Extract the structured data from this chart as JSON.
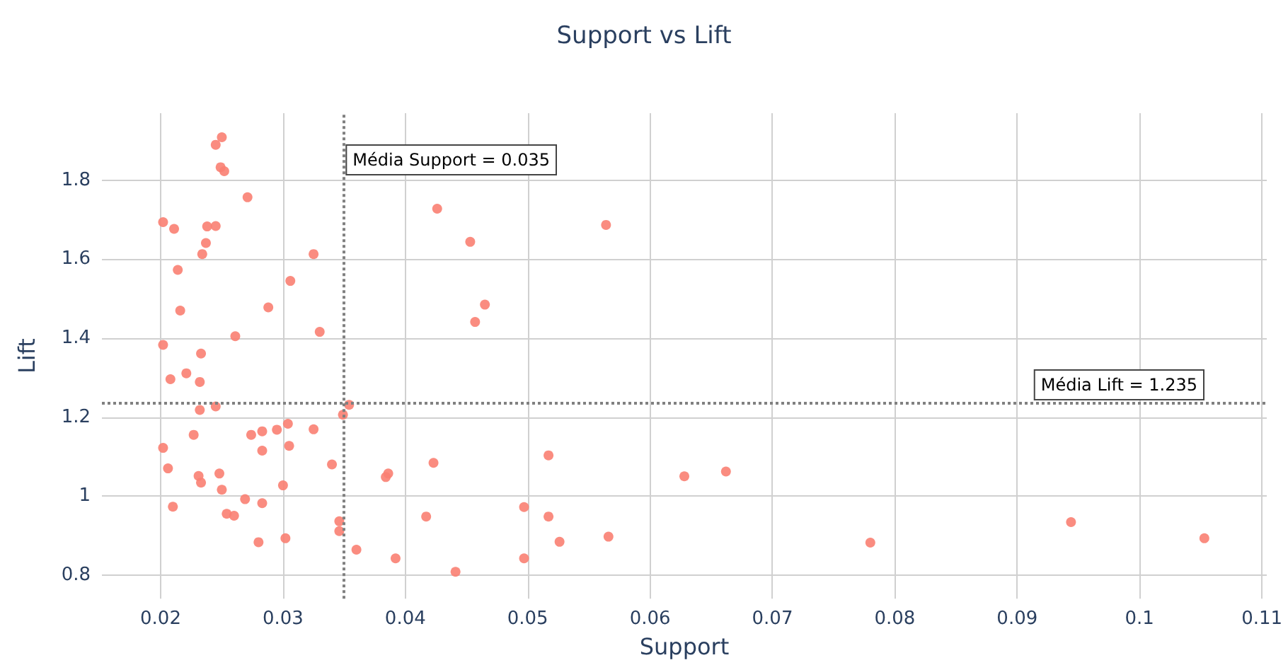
{
  "chart_data": {
    "type": "scatter",
    "title": "Support vs Lift",
    "xlabel": "Support",
    "ylabel": "Lift",
    "color": "#fa8072",
    "marker": "circle",
    "grid": true,
    "xlim": [
      0.0152,
      0.1104
    ],
    "xticks": [
      0.02,
      0.03,
      0.04,
      0.05,
      0.06,
      0.07,
      0.08,
      0.09,
      0.1,
      0.11
    ],
    "ylim": [
      0.74,
      1.97
    ],
    "yticks": [
      0.8,
      1,
      1.2,
      1.4,
      1.6,
      1.8
    ],
    "x": [
      0.025,
      0.0245,
      0.0249,
      0.0252,
      0.0271,
      0.0202,
      0.0211,
      0.0238,
      0.0245,
      0.0237,
      0.0234,
      0.0325,
      0.0214,
      0.0306,
      0.0216,
      0.0288,
      0.033,
      0.0261,
      0.0202,
      0.0233,
      0.0208,
      0.0221,
      0.0232,
      0.0232,
      0.0245,
      0.0354,
      0.0349,
      0.0227,
      0.0274,
      0.0283,
      0.0295,
      0.0304,
      0.0325,
      0.0202,
      0.0283,
      0.0305,
      0.034,
      0.0206,
      0.0231,
      0.0248,
      0.0233,
      0.025,
      0.03,
      0.0269,
      0.0283,
      0.021,
      0.0254,
      0.026,
      0.0346,
      0.0346,
      0.036,
      0.028,
      0.0302,
      0.0426,
      0.0453,
      0.0465,
      0.0457,
      0.0517,
      0.0423,
      0.0386,
      0.0384,
      0.0417,
      0.0497,
      0.0517,
      0.0392,
      0.0497,
      0.0441,
      0.0564,
      0.0628,
      0.0662,
      0.0526,
      0.0566,
      0.078,
      0.0944,
      0.1053
    ],
    "values": [
      1.909,
      1.89,
      1.833,
      1.823,
      1.757,
      1.694,
      1.677,
      1.683,
      1.684,
      1.641,
      1.613,
      1.613,
      1.573,
      1.545,
      1.47,
      1.478,
      1.416,
      1.405,
      1.383,
      1.361,
      1.296,
      1.311,
      1.289,
      1.218,
      1.227,
      1.231,
      1.206,
      1.155,
      1.155,
      1.164,
      1.168,
      1.183,
      1.169,
      1.122,
      1.115,
      1.127,
      1.08,
      1.07,
      1.051,
      1.057,
      1.034,
      1.016,
      1.027,
      0.992,
      0.982,
      0.973,
      0.955,
      0.95,
      0.936,
      0.911,
      0.864,
      0.883,
      0.893,
      1.728,
      1.644,
      1.485,
      1.441,
      1.103,
      1.084,
      1.057,
      1.048,
      0.948,
      0.972,
      0.948,
      0.842,
      0.842,
      0.808,
      1.687,
      1.05,
      1.062,
      0.884,
      0.897,
      0.882,
      0.934,
      0.893
    ],
    "ref_lines": [
      {
        "axis": "x",
        "value": 0.035,
        "label": "Média Support = 0.035",
        "color": "#808080",
        "line_style": "dotted"
      },
      {
        "axis": "y",
        "value": 1.235,
        "label": "Média Lift = 1.235",
        "color": "#808080",
        "line_style": "dotted"
      }
    ]
  }
}
